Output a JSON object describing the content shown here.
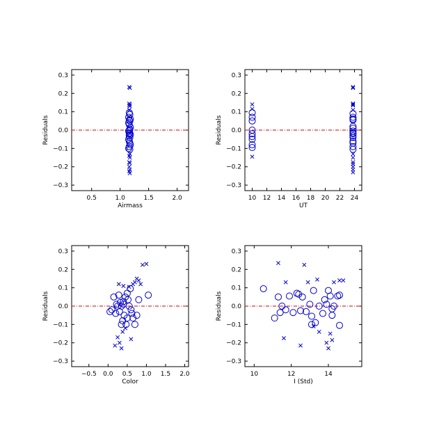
{
  "chart_data": [
    {
      "type": "scatter",
      "xlabel": "Airmass",
      "ylabel": "Residuals",
      "xlim": [
        0.15,
        2.2
      ],
      "ylim": [
        -0.33,
        0.33
      ],
      "xticks": [
        0.5,
        1.0,
        1.5,
        2.0
      ],
      "xtick_labels": [
        "0.5",
        "1.0",
        "1.5",
        "2.0"
      ],
      "yticks": [
        -0.3,
        -0.2,
        -0.1,
        0.0,
        0.1,
        0.2,
        0.3
      ],
      "ytick_labels": [
        "−0.3",
        "−0.2",
        "−0.1",
        "0.0",
        "0.1",
        "0.2",
        "0.3"
      ],
      "reference_line": 0.0,
      "grid": false,
      "colors": {
        "points": "#0000cc",
        "zero_line": "#cc0000"
      },
      "series": [
        {
          "marker": "circle",
          "x": [
            1.16,
            1.17,
            1.15,
            1.18,
            1.16,
            1.17,
            1.15,
            1.16,
            1.18,
            1.17,
            1.16,
            1.15,
            1.17,
            1.16,
            1.18,
            1.16,
            1.17,
            1.15,
            1.16,
            1.17,
            1.18,
            1.16,
            1.15,
            1.17
          ],
          "y": [
            0.095,
            0.085,
            0.07,
            0.06,
            0.055,
            0.05,
            0.04,
            0.03,
            0.015,
            0.005,
            0.0,
            -0.005,
            -0.015,
            -0.02,
            -0.025,
            -0.03,
            -0.04,
            -0.05,
            -0.06,
            -0.07,
            -0.08,
            -0.09,
            -0.1,
            -0.105
          ]
        },
        {
          "marker": "x",
          "x": [
            1.16,
            1.17,
            1.16,
            1.17,
            1.16,
            1.17,
            1.16,
            1.17,
            1.16,
            1.17,
            1.16,
            1.17,
            1.16,
            1.17,
            1.16,
            1.17
          ],
          "y": [
            0.235,
            0.23,
            0.145,
            0.14,
            0.135,
            0.13,
            0.11,
            -0.13,
            -0.14,
            -0.15,
            -0.175,
            -0.18,
            -0.2,
            -0.215,
            -0.225,
            -0.235
          ]
        }
      ]
    },
    {
      "type": "scatter",
      "xlabel": "UT",
      "ylabel": "Residuals",
      "xlim": [
        9.0,
        25.0
      ],
      "ylim": [
        -0.33,
        0.33
      ],
      "xticks": [
        10,
        12,
        14,
        16,
        18,
        20,
        22,
        24
      ],
      "xtick_labels": [
        "10",
        "12",
        "14",
        "16",
        "18",
        "20",
        "22",
        "24"
      ],
      "yticks": [
        -0.3,
        -0.2,
        -0.1,
        0.0,
        0.1,
        0.2,
        0.3
      ],
      "ytick_labels": [
        "−0.3",
        "−0.2",
        "−0.1",
        "0.0",
        "0.1",
        "0.2",
        "0.3"
      ],
      "reference_line": 0.0,
      "grid": false,
      "colors": {
        "points": "#0000cc",
        "zero_line": "#cc0000"
      },
      "series": [
        {
          "marker": "circle",
          "x": [
            10.0,
            10.0,
            10.0,
            10.0,
            10.0,
            10.0,
            10.0,
            10.0,
            10.0,
            23.8,
            23.8,
            23.8,
            23.8,
            23.8,
            23.8,
            23.8,
            23.8,
            23.8,
            23.8,
            23.8,
            23.8,
            23.8,
            23.8,
            23.8
          ],
          "y": [
            0.095,
            0.07,
            0.05,
            0.0,
            -0.02,
            -0.035,
            -0.05,
            -0.08,
            -0.095,
            0.09,
            0.07,
            0.06,
            0.055,
            0.02,
            0.01,
            -0.005,
            -0.015,
            -0.02,
            -0.03,
            -0.04,
            -0.06,
            -0.07,
            -0.09,
            -0.105
          ]
        },
        {
          "marker": "x",
          "x": [
            10.0,
            10.0,
            10.0,
            23.8,
            23.8,
            23.8,
            23.8,
            23.8,
            23.8,
            23.8,
            23.8,
            23.8,
            23.8,
            23.8,
            23.8,
            23.8
          ],
          "y": [
            0.14,
            0.115,
            -0.145,
            0.235,
            0.23,
            0.145,
            0.14,
            0.135,
            0.11,
            -0.13,
            -0.15,
            -0.175,
            -0.185,
            -0.2,
            -0.215,
            -0.23
          ]
        }
      ]
    },
    {
      "type": "scatter",
      "xlabel": "Color",
      "ylabel": "Residuals",
      "xlim": [
        -0.95,
        2.1
      ],
      "ylim": [
        -0.33,
        0.33
      ],
      "xticks": [
        -0.5,
        0.0,
        0.5,
        1.0,
        1.5,
        2.0
      ],
      "xtick_labels": [
        "−0.5",
        "0.0",
        "0.5",
        "1.0",
        "1.5",
        "2.0"
      ],
      "yticks": [
        -0.3,
        -0.2,
        -0.1,
        0.0,
        0.1,
        0.2,
        0.3
      ],
      "ytick_labels": [
        "−0.3",
        "−0.2",
        "−0.1",
        "0.0",
        "0.1",
        "0.2",
        "0.3"
      ],
      "reference_line": 0.0,
      "grid": false,
      "colors": {
        "points": "#0000cc",
        "zero_line": "#cc0000"
      },
      "series": [
        {
          "marker": "circle",
          "x": [
            0.05,
            0.1,
            0.15,
            0.2,
            0.22,
            0.25,
            0.28,
            0.3,
            0.32,
            0.35,
            0.38,
            0.4,
            0.42,
            0.45,
            0.47,
            0.5,
            0.52,
            0.55,
            0.58,
            0.6,
            0.62,
            0.65,
            0.7,
            0.75,
            0.8,
            1.05,
            0.35,
            0.4,
            0.5
          ],
          "y": [
            -0.03,
            -0.02,
            0.05,
            -0.04,
            0.01,
            0.0,
            0.06,
            -0.03,
            0.02,
            0.0,
            -0.08,
            0.01,
            -0.05,
            0.05,
            -0.1,
            0.07,
            0.035,
            0.0,
            0.095,
            -0.02,
            -0.04,
            -0.065,
            -0.1,
            -0.05,
            0.035,
            0.06,
            -0.1,
            0.025,
            -0.065
          ]
        },
        {
          "marker": "x",
          "x": [
            0.18,
            0.25,
            0.3,
            0.35,
            0.38,
            0.45,
            0.55,
            0.6,
            0.65,
            0.7,
            0.75,
            0.8,
            0.85,
            0.9,
            1.0,
            0.28,
            0.4
          ],
          "y": [
            -0.215,
            -0.17,
            -0.2,
            -0.23,
            -0.14,
            -0.12,
            0.105,
            -0.18,
            0.12,
            0.13,
            0.15,
            0.14,
            0.12,
            0.225,
            0.23,
            0.12,
            0.11
          ]
        }
      ]
    },
    {
      "type": "scatter",
      "xlabel": "I (Std)",
      "ylabel": "Residuals",
      "xlim": [
        9.5,
        15.8
      ],
      "ylim": [
        -0.33,
        0.33
      ],
      "xticks": [
        10,
        12,
        14
      ],
      "xtick_labels": [
        "10",
        "12",
        "14"
      ],
      "yticks": [
        -0.3,
        -0.2,
        -0.1,
        0.0,
        0.1,
        0.2,
        0.3
      ],
      "ytick_labels": [
        "−0.3",
        "−0.2",
        "−0.1",
        "0.0",
        "0.1",
        "0.2",
        "0.3"
      ],
      "reference_line": 0.0,
      "grid": false,
      "colors": {
        "points": "#0000cc",
        "zero_line": "#cc0000"
      },
      "series": [
        {
          "marker": "circle",
          "x": [
            10.5,
            11.1,
            11.3,
            11.5,
            11.7,
            11.9,
            12.1,
            12.3,
            12.5,
            12.6,
            12.8,
            13.0,
            13.1,
            13.2,
            13.3,
            13.5,
            13.7,
            13.8,
            14.0,
            14.1,
            14.2,
            14.3,
            14.5,
            14.6,
            11.4,
            12.4,
            13.1,
            13.9,
            14.2,
            14.6
          ],
          "y": [
            0.095,
            -0.065,
            0.05,
            0.0,
            -0.02,
            0.055,
            -0.035,
            0.07,
            -0.025,
            0.05,
            -0.03,
            0.01,
            -0.055,
            0.085,
            -0.09,
            0.0,
            -0.04,
            0.035,
            0.085,
            0.055,
            -0.015,
            0.0,
            0.055,
            -0.105,
            -0.035,
            0.065,
            -0.1,
            0.01,
            -0.05,
            0.06
          ]
        },
        {
          "marker": "x",
          "x": [
            11.3,
            11.6,
            11.7,
            12.5,
            12.7,
            12.9,
            13.4,
            13.5,
            13.9,
            14.0,
            14.1,
            14.3,
            14.6,
            14.8,
            13.2,
            14.2
          ],
          "y": [
            0.235,
            -0.175,
            0.13,
            -0.215,
            0.225,
            0.13,
            0.145,
            -0.14,
            -0.2,
            -0.23,
            -0.15,
            0.13,
            0.14,
            0.14,
            -0.11,
            -0.185
          ]
        }
      ]
    }
  ]
}
